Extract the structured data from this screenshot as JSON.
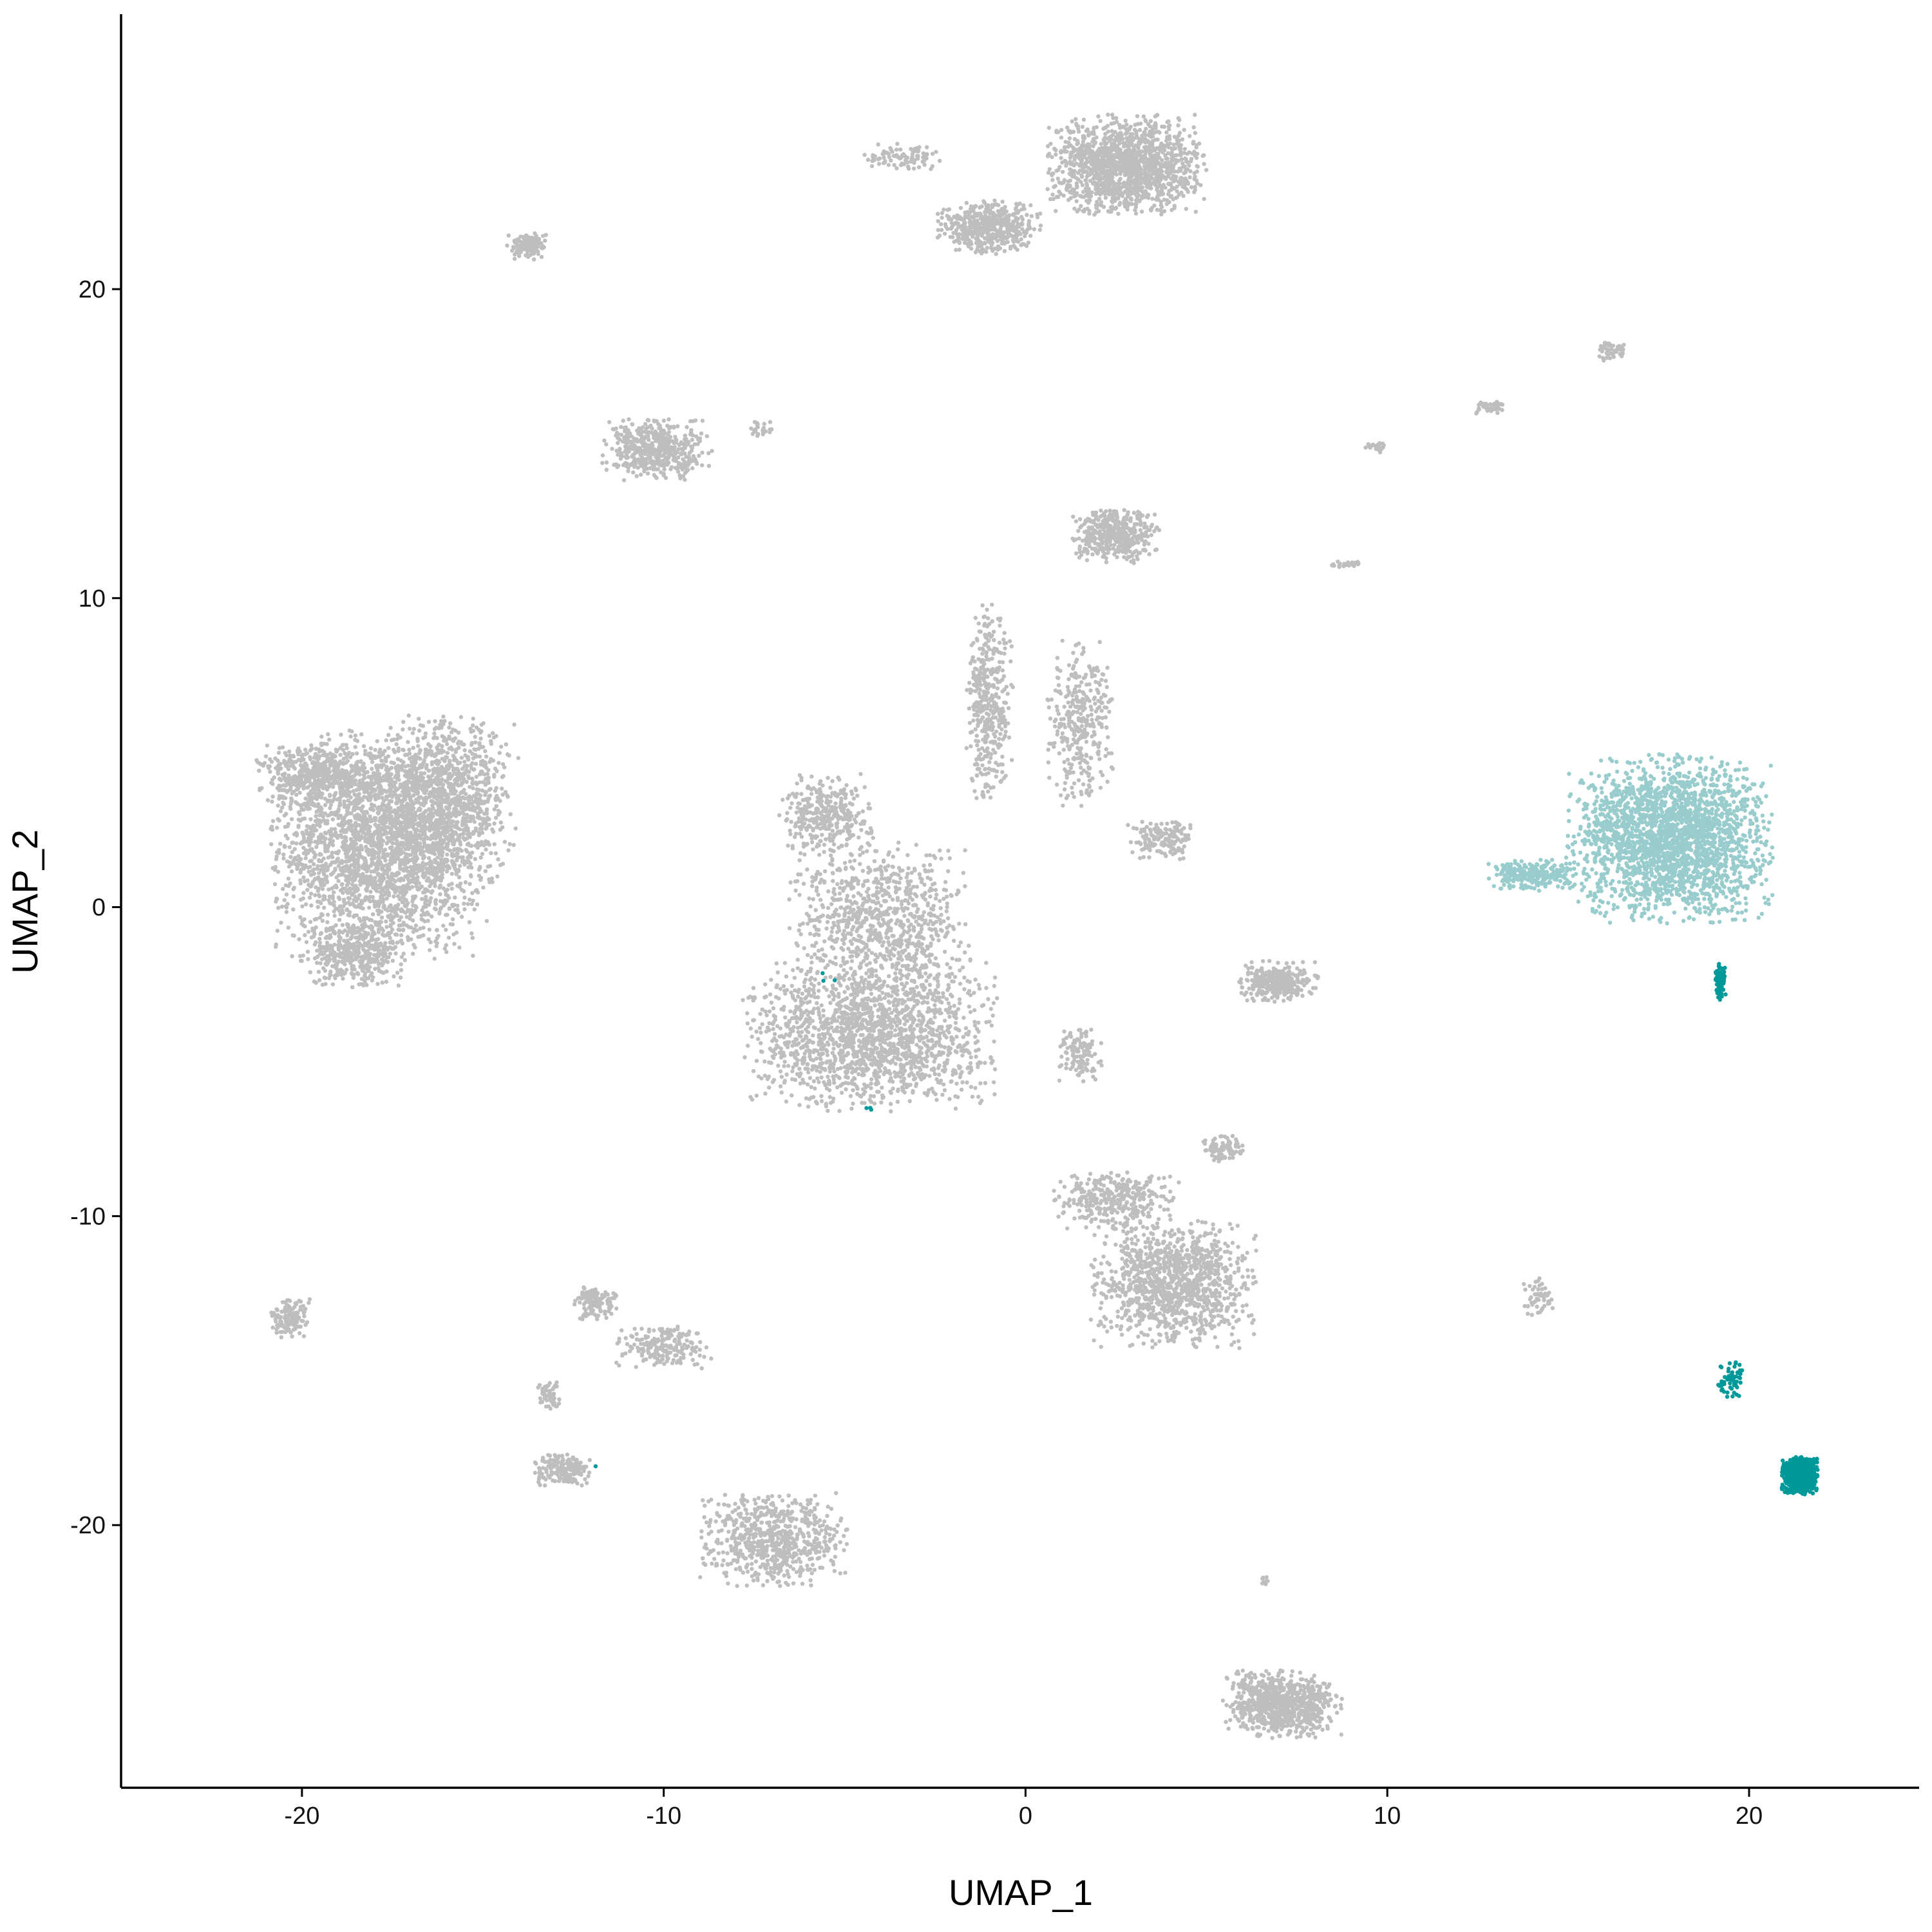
{
  "chart_data": {
    "type": "scatter",
    "title": "",
    "xlabel": "UMAP_1",
    "ylabel": "UMAP_2",
    "xlim": [
      -25,
      24.7
    ],
    "ylim": [
      -28.5,
      28.9
    ],
    "x_ticks": [
      -20,
      -10,
      0,
      10,
      20
    ],
    "y_ticks": [
      -20,
      -10,
      0,
      10,
      20
    ],
    "x_tick_labels": [
      "-20",
      "-10",
      "0",
      "10",
      "20"
    ],
    "y_tick_labels": [
      "-20",
      "-10",
      "0",
      "10",
      "20"
    ],
    "grid": false,
    "legend": "none",
    "colors": {
      "background_cells": "#bebebe",
      "highlight_light": "#99cccc",
      "highlight_dark": "#009999"
    },
    "series": [
      {
        "color": "#bebebe",
        "values": [
          {
            "x": -17.8,
            "y": 2.0,
            "spread_x": 2.8,
            "spread_y": 3.4,
            "n": 2600
          },
          {
            "x": -16.0,
            "y": 3.5,
            "spread_x": 1.8,
            "spread_y": 2.5,
            "n": 900
          },
          {
            "x": -19.5,
            "y": 4.2,
            "spread_x": 1.6,
            "spread_y": 1.0,
            "n": 500
          },
          {
            "x": -18.5,
            "y": -1.5,
            "spread_x": 1.3,
            "spread_y": 1.0,
            "n": 400
          },
          {
            "x": -4.3,
            "y": -4.2,
            "spread_x": 3.2,
            "spread_y": 2.2,
            "n": 1700
          },
          {
            "x": -4.0,
            "y": -0.5,
            "spread_x": 2.3,
            "spread_y": 2.4,
            "n": 900
          },
          {
            "x": -5.5,
            "y": 3.0,
            "spread_x": 1.2,
            "spread_y": 1.2,
            "n": 350
          },
          {
            "x": -1.0,
            "y": 6.5,
            "spread_x": 0.6,
            "spread_y": 3.0,
            "n": 400
          },
          {
            "x": 1.5,
            "y": 6.0,
            "spread_x": 0.9,
            "spread_y": 2.5,
            "n": 350
          },
          {
            "x": 2.5,
            "y": 12.0,
            "spread_x": 1.1,
            "spread_y": 0.8,
            "n": 450
          },
          {
            "x": 2.8,
            "y": 24.0,
            "spread_x": 2.0,
            "spread_y": 1.5,
            "n": 1500
          },
          {
            "x": -1.0,
            "y": 22.0,
            "spread_x": 1.3,
            "spread_y": 0.8,
            "n": 500
          },
          {
            "x": -3.5,
            "y": 24.3,
            "spread_x": 1.2,
            "spread_y": 0.4,
            "n": 90
          },
          {
            "x": -10.2,
            "y": 14.8,
            "spread_x": 1.4,
            "spread_y": 0.9,
            "n": 500
          },
          {
            "x": -13.8,
            "y": 21.4,
            "spread_x": 0.5,
            "spread_y": 0.4,
            "n": 140
          },
          {
            "x": -7.3,
            "y": 15.5,
            "spread_x": 0.3,
            "spread_y": 0.3,
            "n": 25
          },
          {
            "x": 4.1,
            "y": -12.2,
            "spread_x": 2.1,
            "spread_y": 1.9,
            "n": 1200
          },
          {
            "x": 2.5,
            "y": -9.5,
            "spread_x": 1.6,
            "spread_y": 0.9,
            "n": 350
          },
          {
            "x": 5.5,
            "y": -7.8,
            "spread_x": 0.6,
            "spread_y": 0.5,
            "n": 90
          },
          {
            "x": 7.1,
            "y": -25.8,
            "spread_x": 1.5,
            "spread_y": 1.0,
            "n": 800
          },
          {
            "x": -7.0,
            "y": -20.5,
            "spread_x": 1.9,
            "spread_y": 1.4,
            "n": 700
          },
          {
            "x": -12.8,
            "y": -18.2,
            "spread_x": 0.8,
            "spread_y": 0.5,
            "n": 180
          },
          {
            "x": -10.0,
            "y": -14.2,
            "spread_x": 1.2,
            "spread_y": 0.7,
            "n": 200
          },
          {
            "x": -11.9,
            "y": -12.8,
            "spread_x": 0.6,
            "spread_y": 0.5,
            "n": 120
          },
          {
            "x": -13.2,
            "y": -15.8,
            "spread_x": 0.3,
            "spread_y": 0.5,
            "n": 60
          },
          {
            "x": -20.3,
            "y": -13.3,
            "spread_x": 0.5,
            "spread_y": 0.6,
            "n": 140
          },
          {
            "x": 7.0,
            "y": -2.4,
            "spread_x": 1.0,
            "spread_y": 0.6,
            "n": 300
          },
          {
            "x": 3.8,
            "y": 2.2,
            "spread_x": 0.9,
            "spread_y": 0.6,
            "n": 160
          },
          {
            "x": 1.5,
            "y": -4.8,
            "spread_x": 0.6,
            "spread_y": 0.8,
            "n": 120
          },
          {
            "x": 14.2,
            "y": -12.6,
            "spread_x": 0.4,
            "spread_y": 0.6,
            "n": 50
          },
          {
            "x": 12.8,
            "y": 16.2,
            "spread_x": 0.4,
            "spread_y": 0.2,
            "n": 45
          },
          {
            "x": 16.2,
            "y": 18.0,
            "spread_x": 0.4,
            "spread_y": 0.3,
            "n": 50
          },
          {
            "x": 9.7,
            "y": 14.9,
            "spread_x": 0.3,
            "spread_y": 0.2,
            "n": 25
          },
          {
            "x": 8.8,
            "y": 11.1,
            "spread_x": 0.5,
            "spread_y": 0.1,
            "n": 25
          },
          {
            "x": 6.6,
            "y": -21.8,
            "spread_x": 0.1,
            "spread_y": 0.2,
            "n": 8
          }
        ]
      },
      {
        "color": "#99cccc",
        "values": [
          {
            "x": 17.8,
            "y": 2.2,
            "spread_x": 2.6,
            "spread_y": 2.5,
            "n": 2400
          },
          {
            "x": 14.0,
            "y": 1.0,
            "spread_x": 1.1,
            "spread_y": 0.5,
            "n": 250
          }
        ]
      },
      {
        "color": "#009999",
        "values": [
          {
            "x": 21.4,
            "y": -18.4,
            "spread_x": 0.45,
            "spread_y": 0.55,
            "n": 900
          },
          {
            "x": 19.5,
            "y": -15.3,
            "spread_x": 0.35,
            "spread_y": 0.6,
            "n": 60
          },
          {
            "x": 19.2,
            "y": -2.4,
            "spread_x": 0.15,
            "spread_y": 0.6,
            "n": 80
          },
          {
            "x": -5.5,
            "y": -2.2,
            "spread_x": 0.3,
            "spread_y": 0.3,
            "n": 3
          },
          {
            "x": -4.2,
            "y": -6.2,
            "spread_x": 0.3,
            "spread_y": 0.6,
            "n": 3
          },
          {
            "x": -11.9,
            "y": -18.1,
            "spread_x": 0.05,
            "spread_y": 0.05,
            "n": 1
          }
        ]
      }
    ]
  }
}
